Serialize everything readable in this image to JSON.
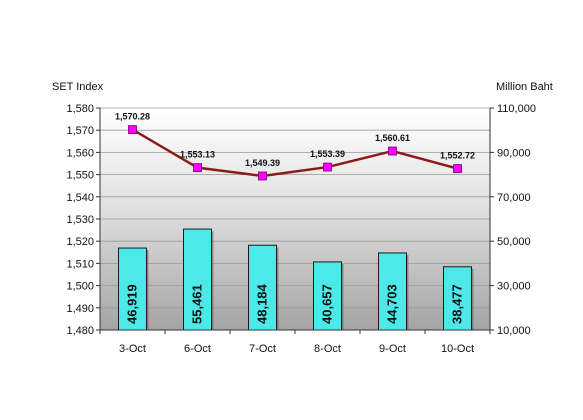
{
  "chart_data": {
    "type": "bar+line",
    "categories": [
      "3-Oct",
      "6-Oct",
      "7-Oct",
      "8-Oct",
      "9-Oct",
      "10-Oct"
    ],
    "left_axis": {
      "label": "SET Index",
      "ylim": [
        1480,
        1580
      ],
      "ticks": [
        "1,480",
        "1,490",
        "1,500",
        "1,510",
        "1,520",
        "1,530",
        "1,540",
        "1,550",
        "1,560",
        "1,570",
        "1,580"
      ]
    },
    "right_axis": {
      "label": "Million Baht",
      "ylim": [
        10000,
        110000
      ],
      "ticks": [
        "10,000",
        "30,000",
        "50,000",
        "70,000",
        "90,000",
        "110,000"
      ]
    },
    "bars": {
      "axis": "right",
      "values": [
        46919,
        55461,
        48184,
        40657,
        44703,
        38477
      ],
      "labels": [
        "46,919",
        "55,461",
        "48,184",
        "40,657",
        "44,703",
        "38,477"
      ],
      "color": "#4de8e8"
    },
    "line": {
      "axis": "left",
      "values": [
        1570.28,
        1553.13,
        1549.39,
        1553.39,
        1560.61,
        1552.72
      ],
      "labels": [
        "1,570.28",
        "1,553.13",
        "1,549.39",
        "1,553.39",
        "1,560.61",
        "1,552.72"
      ],
      "line_color": "#8b1a1a",
      "marker_color": "#ff00ff"
    },
    "grid": true
  }
}
